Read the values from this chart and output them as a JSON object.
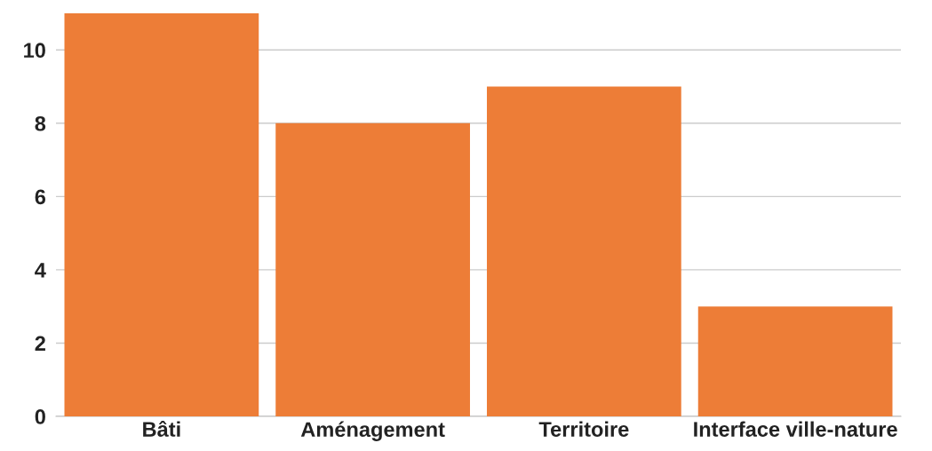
{
  "chart_data": {
    "type": "bar",
    "categories": [
      "Bâti",
      "Aménagement",
      "Territoire",
      "Interface ville-nature"
    ],
    "values": [
      11,
      8,
      9,
      3
    ],
    "color": "#ed7d37",
    "ylim": [
      0,
      11
    ],
    "yticks": [
      0,
      2,
      4,
      6,
      8,
      10
    ],
    "grid": "y",
    "legend": false
  }
}
